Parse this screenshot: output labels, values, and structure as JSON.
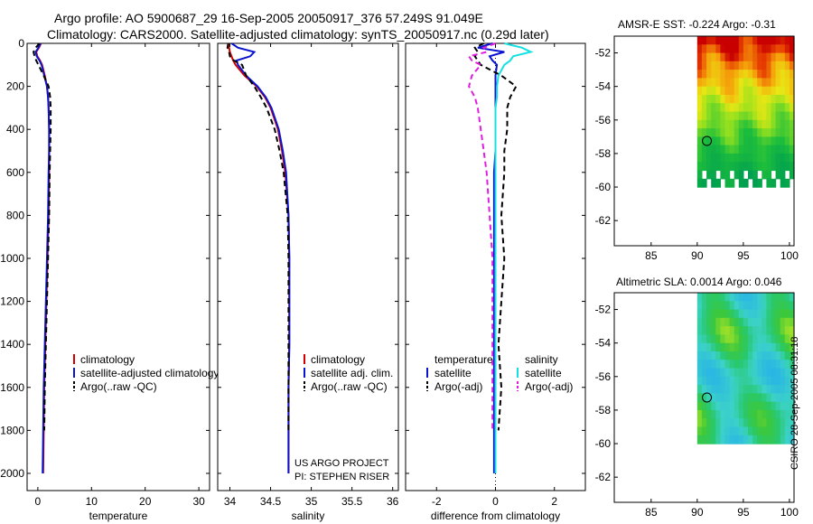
{
  "header": {
    "line1": "Argo profile: AO 5900687_29 16-Sep-2005 20050917_376 57.249S 91.049E",
    "line2": "Climatology: CARS2000. Satellite-adjusted climatology: synTS_20050917.nc (0.29d later)"
  },
  "colors": {
    "climatology": "#d40000",
    "satellite": "#0a14d0",
    "argo": "#000000",
    "temp_satellite": "#0a14d0",
    "sal_satellite": "#14e0e0",
    "sal_argo": "#e01ee0"
  },
  "chart_data": [
    {
      "type": "line",
      "id": "temperature",
      "xlabel": "temperature",
      "ylabel": "",
      "xlim": [
        -2,
        32
      ],
      "ylim": [
        2080,
        0
      ],
      "xticks": [
        0,
        10,
        20,
        30
      ],
      "xtick_labels": [
        "0",
        "10",
        "20",
        "30"
      ],
      "yticks": [
        0,
        200,
        400,
        600,
        800,
        1000,
        1200,
        1400,
        1600,
        1800,
        2000
      ],
      "ytick_labels": [
        "0",
        "200",
        "400",
        "600",
        "800",
        "1000",
        "1200",
        "1400",
        "1600",
        "1800",
        "2000"
      ],
      "depth": [
        0,
        20,
        40,
        60,
        80,
        100,
        150,
        200,
        250,
        300,
        400,
        500,
        600,
        800,
        1000,
        1200,
        1400,
        1600,
        1800,
        2000
      ],
      "series": [
        {
          "name": "climatology",
          "values": [
            0.6,
            0.2,
            -0.3,
            -0.1,
            0.4,
            0.8,
            1.3,
            1.7,
            1.9,
            2.0,
            2.1,
            2.1,
            2.1,
            2.0,
            1.8,
            1.6,
            1.4,
            1.2,
            1.1,
            1.0
          ]
        },
        {
          "name": "satellite-adjusted climatology",
          "values": [
            0.5,
            0.1,
            -0.4,
            -0.2,
            0.3,
            0.7,
            1.2,
            1.7,
            1.9,
            2.0,
            2.1,
            2.1,
            2.0,
            1.9,
            1.7,
            1.5,
            1.3,
            1.1,
            1.0,
            0.9
          ]
        },
        {
          "name": "Argo(..raw -QC)",
          "values": [
            0.3,
            -0.4,
            -0.8,
            -0.6,
            -0.3,
            0.1,
            1.1,
            2.0,
            2.3,
            2.4,
            2.4,
            2.3,
            2.2,
            2.1,
            1.9,
            1.7,
            1.5,
            1.3,
            1.2,
            null
          ]
        }
      ],
      "legend": [
        "climatology",
        "satellite-adjusted climatology",
        "Argo(..raw -QC)"
      ],
      "legend_position": "bottom-right"
    },
    {
      "type": "line",
      "id": "salinity",
      "xlabel": "salinity",
      "ylabel": "",
      "xlim": [
        33.85,
        36.07
      ],
      "ylim": [
        2080,
        0
      ],
      "xticks": [
        34,
        34.5,
        35,
        35.5,
        36
      ],
      "xtick_labels": [
        "34",
        "34.5",
        "35",
        "35.5",
        "36"
      ],
      "depth": [
        0,
        20,
        40,
        60,
        80,
        100,
        150,
        200,
        250,
        300,
        400,
        500,
        600,
        800,
        1000,
        1200,
        1400,
        1600,
        1800,
        2000
      ],
      "series": [
        {
          "name": "climatology",
          "values": [
            33.98,
            33.99,
            34.0,
            34.02,
            34.04,
            34.07,
            34.18,
            34.33,
            34.43,
            34.5,
            34.59,
            34.64,
            34.68,
            34.72,
            34.73,
            34.73,
            34.73,
            34.72,
            34.72,
            34.72
          ]
        },
        {
          "name": "satellite adj. clim.",
          "values": [
            34.02,
            34.1,
            34.3,
            34.25,
            34.08,
            34.1,
            34.2,
            34.34,
            34.44,
            34.51,
            34.6,
            34.65,
            34.69,
            34.72,
            34.73,
            34.73,
            34.73,
            34.72,
            34.72,
            34.72
          ]
        },
        {
          "name": "Argo(..raw -QC)",
          "values": [
            33.98,
            33.97,
            33.99,
            34.0,
            34.05,
            34.15,
            34.2,
            34.3,
            34.38,
            34.45,
            34.55,
            34.61,
            34.66,
            34.71,
            34.72,
            34.72,
            34.72,
            34.72,
            34.72,
            null
          ]
        }
      ],
      "legend": [
        "climatology",
        "satellite adj. clim.",
        "Argo(..raw -QC)"
      ],
      "legend_position": "bottom-right",
      "annotations": [
        "US ARGO PROJECT",
        "PI: STEPHEN RISER"
      ]
    },
    {
      "type": "line",
      "id": "difference",
      "xlabel": "difference from climatology",
      "ylabel": "",
      "xlim": [
        -3.05,
        3.05
      ],
      "ylim": [
        2080,
        0
      ],
      "xticks": [
        -2,
        0,
        2
      ],
      "xtick_labels": [
        "-2",
        "0",
        "2"
      ],
      "depth": [
        0,
        20,
        40,
        60,
        80,
        100,
        150,
        200,
        250,
        300,
        400,
        500,
        600,
        800,
        1000,
        1200,
        1400,
        1600,
        1800,
        2000
      ],
      "series": [
        {
          "name": "temperature satellite",
          "group": "temperature",
          "label": "satellite",
          "values": [
            -0.1,
            -0.6,
            0.3,
            -0.2,
            -0.1,
            0.05,
            0.0,
            0.0,
            0.0,
            0.0,
            0.0,
            0.0,
            -0.05,
            -0.05,
            -0.05,
            -0.05,
            -0.05,
            -0.05,
            -0.05,
            -0.05
          ]
        },
        {
          "name": "temperature Argo(-adj)",
          "group": "temperature",
          "label": "Argo(-adj)",
          "values": [
            -0.4,
            -0.7,
            -0.6,
            -0.7,
            -0.6,
            -0.5,
            0.2,
            0.7,
            0.5,
            0.4,
            0.4,
            0.3,
            0.3,
            0.2,
            0.3,
            0.2,
            0.1,
            0.2,
            0.1,
            null
          ]
        },
        {
          "name": "salinity satellite",
          "group": "salinity",
          "label": "satellite",
          "values": [
            0.3,
            0.9,
            1.2,
            0.6,
            0.5,
            0.3,
            0.1,
            0.05,
            0.05,
            0.0,
            0.0,
            0.0,
            0.0,
            0.0,
            0.0,
            0.0,
            0.0,
            0.0,
            0.0,
            0.0
          ]
        },
        {
          "name": "salinity Argo(-adj)",
          "group": "salinity",
          "label": "Argo(-adj)",
          "values": [
            0.0,
            -0.4,
            -0.3,
            -0.9,
            -0.8,
            -0.5,
            -0.8,
            -0.9,
            -0.7,
            -0.6,
            -0.5,
            -0.4,
            -0.3,
            -0.2,
            -0.1,
            -0.1,
            -0.1,
            -0.1,
            -0.1,
            null
          ]
        }
      ],
      "legend_groups": [
        "temperature",
        "salinity"
      ],
      "legend_position": "bottom"
    },
    {
      "type": "heatmap",
      "id": "sst-map",
      "title": "AMSR-E SST: -0.224 Argo: -0.31",
      "xlim": [
        81,
        100.5
      ],
      "ylim": [
        -63.5,
        -51
      ],
      "xticks": [
        85,
        90,
        95,
        100
      ],
      "xtick_labels": [
        "85",
        "90",
        "95",
        "100"
      ],
      "yticks": [
        -52,
        -54,
        -56,
        -58,
        -60,
        -62
      ],
      "ytick_labels": [
        "-52",
        "-54",
        "-56",
        "-58",
        "-60",
        "-62"
      ],
      "data_extent": {
        "lon": [
          90,
          100.5
        ],
        "lat": [
          -60,
          -51
        ]
      },
      "marker": {
        "lon": 91.049,
        "lat": -57.249
      }
    },
    {
      "type": "heatmap",
      "id": "sla-map",
      "title": "Altimetric SLA: 0.0014 Argo: 0.046",
      "xlim": [
        81,
        100.5
      ],
      "ylim": [
        -63.5,
        -51
      ],
      "xticks": [
        85,
        90,
        95,
        100
      ],
      "xtick_labels": [
        "85",
        "90",
        "95",
        "100"
      ],
      "yticks": [
        -52,
        -54,
        -56,
        -58,
        -60,
        -62
      ],
      "ytick_labels": [
        "-52",
        "-54",
        "-56",
        "-58",
        "-60",
        "-62"
      ],
      "data_extent": {
        "lon": [
          90,
          100.5
        ],
        "lat": [
          -60,
          -51
        ]
      },
      "marker": {
        "lon": 91.049,
        "lat": -57.249
      }
    }
  ],
  "credit": "CSIRO 28-Sep-2005 08:31:18"
}
